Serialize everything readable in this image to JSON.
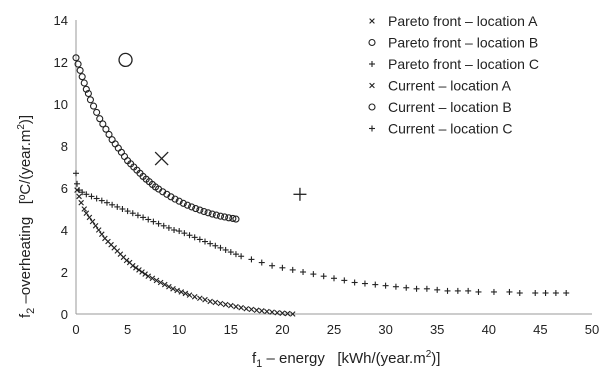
{
  "chart_data": {
    "type": "scatter",
    "title": "",
    "xlabel": {
      "main": "f",
      "sub": "1",
      "rest": " – energy   [kWh/(year.m",
      "sup": "2",
      "end": ")]"
    },
    "ylabel": {
      "main": "f",
      "sub": "2",
      "rest": " –overheating   [ºC/(year.m",
      "sup": "2",
      "end": ")]"
    },
    "xlim": [
      0,
      50
    ],
    "ylim": [
      0,
      14
    ],
    "xticks": [
      0,
      5,
      10,
      15,
      20,
      25,
      30,
      35,
      40,
      45,
      50
    ],
    "yticks": [
      0,
      2,
      4,
      6,
      8,
      10,
      12,
      14
    ],
    "grid": false,
    "legend_position": "top-right",
    "series": [
      {
        "name": "Pareto front – location A",
        "marker": "x-small",
        "color": "#222222",
        "points": [
          [
            0.1,
            5.9
          ],
          [
            0.3,
            5.6
          ],
          [
            0.5,
            5.3
          ],
          [
            0.8,
            5.0
          ],
          [
            1.0,
            4.8
          ],
          [
            1.3,
            4.6
          ],
          [
            1.6,
            4.4
          ],
          [
            1.9,
            4.2
          ],
          [
            2.2,
            4.0
          ],
          [
            2.5,
            3.8
          ],
          [
            2.8,
            3.6
          ],
          [
            3.1,
            3.45
          ],
          [
            3.4,
            3.3
          ],
          [
            3.7,
            3.15
          ],
          [
            4.0,
            3.0
          ],
          [
            4.3,
            2.85
          ],
          [
            4.6,
            2.7
          ],
          [
            4.9,
            2.55
          ],
          [
            5.2,
            2.45
          ],
          [
            5.5,
            2.3
          ],
          [
            5.8,
            2.2
          ],
          [
            6.1,
            2.1
          ],
          [
            6.4,
            2.0
          ],
          [
            6.7,
            1.9
          ],
          [
            7.0,
            1.8
          ],
          [
            7.4,
            1.7
          ],
          [
            7.8,
            1.6
          ],
          [
            8.2,
            1.5
          ],
          [
            8.6,
            1.4
          ],
          [
            9.0,
            1.3
          ],
          [
            9.4,
            1.2
          ],
          [
            9.8,
            1.12
          ],
          [
            10.2,
            1.05
          ],
          [
            10.6,
            0.98
          ],
          [
            11.0,
            0.9
          ],
          [
            11.5,
            0.82
          ],
          [
            12.0,
            0.75
          ],
          [
            12.5,
            0.68
          ],
          [
            13.0,
            0.6
          ],
          [
            13.5,
            0.55
          ],
          [
            14.0,
            0.5
          ],
          [
            14.5,
            0.45
          ],
          [
            15.0,
            0.4
          ],
          [
            15.5,
            0.35
          ],
          [
            16.0,
            0.3
          ],
          [
            16.5,
            0.25
          ],
          [
            17.0,
            0.22
          ],
          [
            17.5,
            0.18
          ],
          [
            18.0,
            0.15
          ],
          [
            18.5,
            0.12
          ],
          [
            19.0,
            0.09
          ],
          [
            19.5,
            0.06
          ],
          [
            20.0,
            0.04
          ],
          [
            20.5,
            0.02
          ],
          [
            21.0,
            0.0
          ]
        ]
      },
      {
        "name": "Pareto front – location B",
        "marker": "o-small",
        "color": "#222222",
        "points": [
          [
            0.0,
            12.2
          ],
          [
            0.2,
            11.9
          ],
          [
            0.4,
            11.6
          ],
          [
            0.6,
            11.3
          ],
          [
            0.8,
            11.0
          ],
          [
            1.0,
            10.7
          ],
          [
            1.2,
            10.5
          ],
          [
            1.4,
            10.2
          ],
          [
            1.7,
            9.9
          ],
          [
            2.0,
            9.6
          ],
          [
            2.3,
            9.3
          ],
          [
            2.6,
            9.05
          ],
          [
            2.9,
            8.8
          ],
          [
            3.2,
            8.55
          ],
          [
            3.5,
            8.3
          ],
          [
            3.8,
            8.1
          ],
          [
            4.1,
            7.9
          ],
          [
            4.4,
            7.7
          ],
          [
            4.7,
            7.5
          ],
          [
            5.0,
            7.3
          ],
          [
            5.3,
            7.15
          ],
          [
            5.6,
            7.0
          ],
          [
            5.9,
            6.85
          ],
          [
            6.2,
            6.7
          ],
          [
            6.5,
            6.55
          ],
          [
            6.8,
            6.42
          ],
          [
            7.1,
            6.3
          ],
          [
            7.4,
            6.17
          ],
          [
            7.7,
            6.05
          ],
          [
            8.0,
            5.95
          ],
          [
            8.4,
            5.82
          ],
          [
            8.8,
            5.7
          ],
          [
            9.2,
            5.58
          ],
          [
            9.6,
            5.47
          ],
          [
            10.0,
            5.37
          ],
          [
            10.4,
            5.27
          ],
          [
            10.8,
            5.18
          ],
          [
            11.2,
            5.1
          ],
          [
            11.6,
            5.02
          ],
          [
            12.0,
            4.95
          ],
          [
            12.4,
            4.88
          ],
          [
            12.8,
            4.82
          ],
          [
            13.2,
            4.76
          ],
          [
            13.6,
            4.71
          ],
          [
            14.0,
            4.66
          ],
          [
            14.4,
            4.62
          ],
          [
            14.8,
            4.58
          ],
          [
            15.2,
            4.55
          ],
          [
            15.5,
            4.52
          ]
        ]
      },
      {
        "name": "Pareto front – location C",
        "marker": "plus-small",
        "color": "#222222",
        "points": [
          [
            0.0,
            6.7
          ],
          [
            0.1,
            6.2
          ],
          [
            0.3,
            5.9
          ],
          [
            0.6,
            5.8
          ],
          [
            1.0,
            5.7
          ],
          [
            1.5,
            5.6
          ],
          [
            2.0,
            5.5
          ],
          [
            2.5,
            5.4
          ],
          [
            3.0,
            5.3
          ],
          [
            3.5,
            5.2
          ],
          [
            4.0,
            5.1
          ],
          [
            4.5,
            5.0
          ],
          [
            5.0,
            4.9
          ],
          [
            5.5,
            4.8
          ],
          [
            6.0,
            4.7
          ],
          [
            6.5,
            4.6
          ],
          [
            7.0,
            4.5
          ],
          [
            7.5,
            4.4
          ],
          [
            8.0,
            4.3
          ],
          [
            8.5,
            4.2
          ],
          [
            9.0,
            4.1
          ],
          [
            9.5,
            4.0
          ],
          [
            10.0,
            3.95
          ],
          [
            10.5,
            3.85
          ],
          [
            11.0,
            3.75
          ],
          [
            11.5,
            3.65
          ],
          [
            12.0,
            3.55
          ],
          [
            12.5,
            3.45
          ],
          [
            13.0,
            3.35
          ],
          [
            13.5,
            3.25
          ],
          [
            14.0,
            3.15
          ],
          [
            14.5,
            3.05
          ],
          [
            15.0,
            2.95
          ],
          [
            15.5,
            2.85
          ],
          [
            16.0,
            2.75
          ],
          [
            17.0,
            2.6
          ],
          [
            18.0,
            2.45
          ],
          [
            19.0,
            2.3
          ],
          [
            20.0,
            2.2
          ],
          [
            21.0,
            2.1
          ],
          [
            22.0,
            2.0
          ],
          [
            23.0,
            1.9
          ],
          [
            24.0,
            1.8
          ],
          [
            25.0,
            1.7
          ],
          [
            26.0,
            1.6
          ],
          [
            27.0,
            1.5
          ],
          [
            28.0,
            1.45
          ],
          [
            29.0,
            1.4
          ],
          [
            30.0,
            1.35
          ],
          [
            31.0,
            1.3
          ],
          [
            32.0,
            1.25
          ],
          [
            33.0,
            1.2
          ],
          [
            34.0,
            1.2
          ],
          [
            35.0,
            1.15
          ],
          [
            36.0,
            1.1
          ],
          [
            37.0,
            1.1
          ],
          [
            38.0,
            1.1
          ],
          [
            39.0,
            1.05
          ],
          [
            40.5,
            1.05
          ],
          [
            42.0,
            1.05
          ],
          [
            43.0,
            1.0
          ],
          [
            44.5,
            1.0
          ],
          [
            45.5,
            1.0
          ],
          [
            46.5,
            1.0
          ],
          [
            47.5,
            1.0
          ]
        ]
      },
      {
        "name": "Current – location A",
        "marker": "x-large",
        "color": "#222222",
        "points": [
          [
            8.3,
            7.4
          ]
        ]
      },
      {
        "name": "Current – location B",
        "marker": "o-large",
        "color": "#222222",
        "points": [
          [
            4.8,
            12.1
          ]
        ]
      },
      {
        "name": "Current – location C",
        "marker": "plus-large",
        "color": "#222222",
        "points": [
          [
            21.7,
            5.7
          ]
        ]
      }
    ]
  }
}
